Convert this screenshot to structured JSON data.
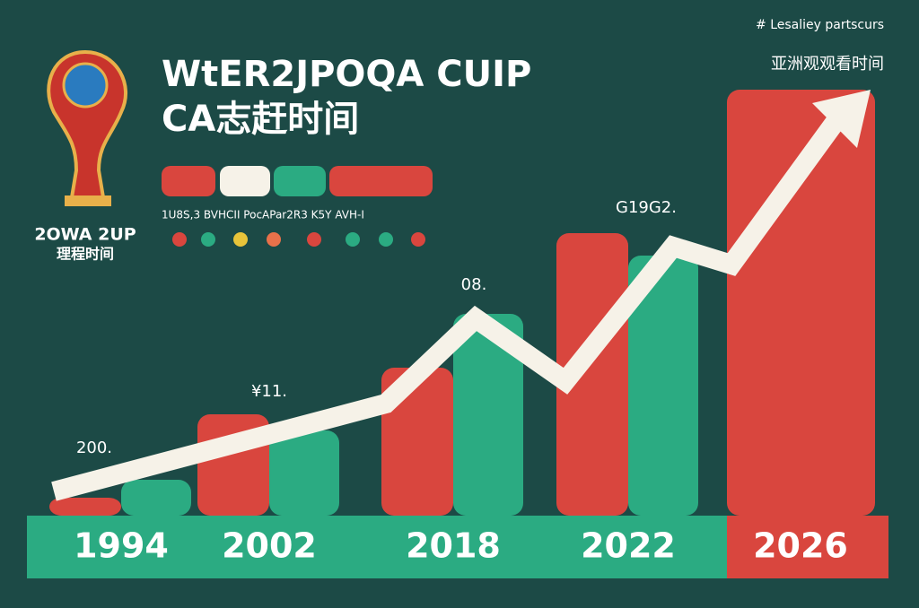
{
  "chart_data": {
    "type": "bar",
    "title": "WtER2JPOQA CUIP",
    "subtitle": "CA志赶时间",
    "logo_text": [
      "2OWA 2UP",
      "理程时间"
    ],
    "legend_text": "1U8S,3 BVHCII PocAPar2R3 K5Y AVH-I",
    "corner_note": "# Lesaliey partscurs",
    "corner_title": "亚洲观观看时间",
    "annotations": [
      "200.",
      "¥11.",
      "08.",
      "G19G2."
    ],
    "categories": [
      "1994",
      "2002",
      "2018",
      "2022",
      "2026"
    ],
    "series": [
      {
        "color": "#d9463e",
        "values": [
          20,
          113,
          165,
          315,
          475
        ]
      },
      {
        "color": "#2bab82",
        "values": [
          40,
          95,
          225,
          290,
          null
        ]
      }
    ]
  }
}
